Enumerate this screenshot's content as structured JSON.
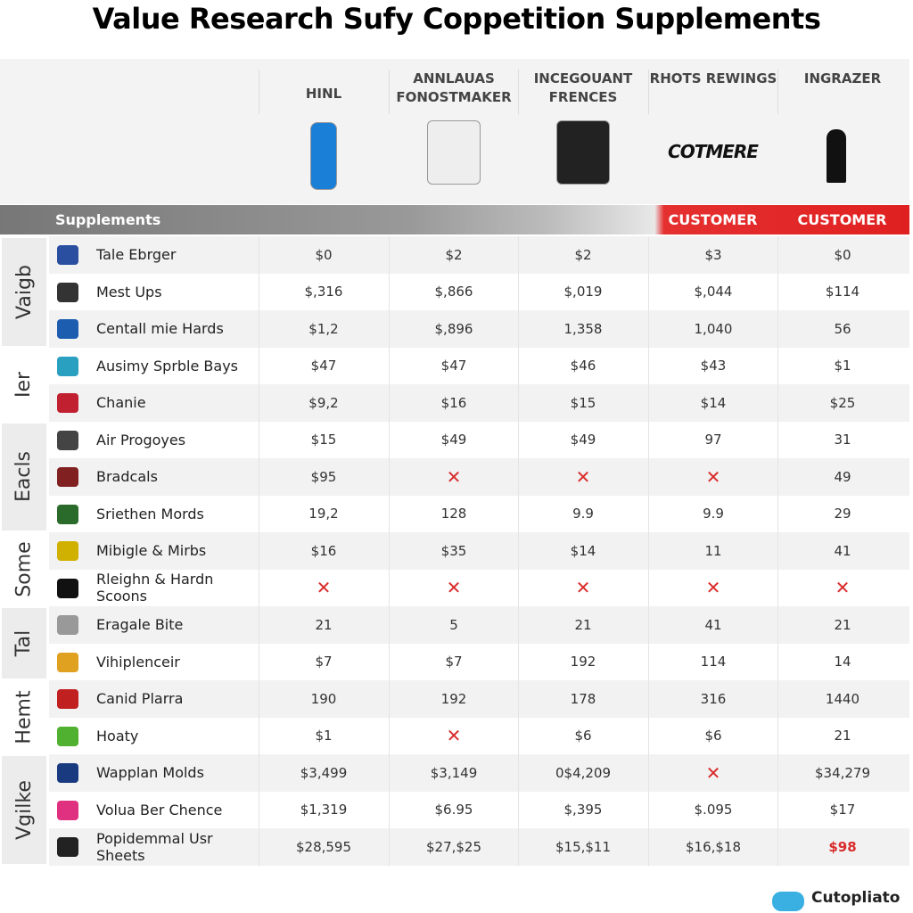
{
  "title": "Value Research Sufy Coppetition Supplements",
  "columns": [
    {
      "label": "HINL"
    },
    {
      "label": "ANNLAUAS FONOSTMAKER"
    },
    {
      "label": "INCEGOUANT FRENCES"
    },
    {
      "label": "RHOTS REWINGS",
      "logo": "COTMERE"
    },
    {
      "label": "INGRAZER"
    }
  ],
  "band": {
    "label": "Supplements",
    "tags": [
      null,
      null,
      null,
      "CUSTOMER",
      "CUSTOMER"
    ]
  },
  "groups": [
    {
      "label": "Vaigb",
      "rows": [
        {
          "name": "Tale Ebrger",
          "cells": [
            "$0",
            "$2",
            "$2",
            "$3",
            "$0"
          ]
        },
        {
          "name": "Mest Ups",
          "cells": [
            "$,316",
            "$,866",
            "$,019",
            "$,044",
            "$114"
          ]
        },
        {
          "name": "Centall mie Hards",
          "cells": [
            "$1,2",
            "$,896",
            "1,358",
            "1,040",
            "56"
          ]
        }
      ]
    },
    {
      "label": "Ier",
      "rows": [
        {
          "name": "Ausimy Sprble Bays",
          "cells": [
            "$47",
            "$47",
            "$46",
            "$43",
            "$1"
          ]
        },
        {
          "name": "Chanie",
          "cells": [
            "$9,2",
            "$16",
            "$15",
            "$14",
            "$25"
          ]
        }
      ]
    },
    {
      "label": "Eacls",
      "rows": [
        {
          "name": "Air Progoyes",
          "cells": [
            "$15",
            "$49",
            "$49",
            "97",
            "31"
          ]
        },
        {
          "name": "Bradcals",
          "cells": [
            "$95",
            "✕",
            "✕",
            "✕",
            "49"
          ]
        },
        {
          "name": "Sriethen Mords",
          "cells": [
            "19,2",
            "128",
            "9.9",
            "9.9",
            "29"
          ]
        }
      ]
    },
    {
      "label": "Some",
      "rows": [
        {
          "name": "Mibigle & Mirbs",
          "cells": [
            "$16",
            "$35",
            "$14",
            "11",
            "41"
          ]
        },
        {
          "name": "Rleighn & Hardn Scoons",
          "cells": [
            "✕",
            "✕",
            "✕",
            "✕",
            "✕"
          ]
        }
      ]
    },
    {
      "label": "Tal",
      "rows": [
        {
          "name": "Eragale Bite",
          "cells": [
            "21",
            "5",
            "21",
            "41",
            "21"
          ]
        },
        {
          "name": "Vihiplenceir",
          "cells": [
            "$7",
            "$7",
            "192",
            "114",
            "14"
          ]
        }
      ]
    },
    {
      "label": "Hemt",
      "rows": [
        {
          "name": "Canid Plarra",
          "cells": [
            "190",
            "192",
            "178",
            "316",
            "1440"
          ]
        },
        {
          "name": "Hoaty",
          "cells": [
            "$1",
            "✕",
            "$6",
            "$6",
            "21"
          ]
        }
      ]
    },
    {
      "label": "Vgilke",
      "rows": [
        {
          "name": "Wapplan Molds",
          "cells": [
            "$3,499",
            "$3,149",
            "0$4,209",
            "✕",
            "$34,279"
          ]
        },
        {
          "name": "Volua Ber Chence",
          "cells": [
            "$1,319",
            "$6.95",
            "$,395",
            "$.095",
            "$17"
          ]
        },
        {
          "name": "Popidemmal Usr Sheets",
          "cells": [
            "$28,595",
            "$27,$25",
            "$15,$11",
            "$16,$18",
            "$98"
          ]
        }
      ]
    }
  ],
  "brand": "Cutopliato"
}
